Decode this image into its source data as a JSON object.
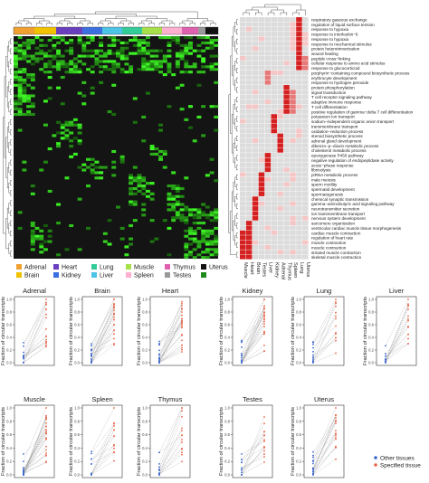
{
  "heatmap_left": {
    "tissues": [
      {
        "name": "Adrenal",
        "color": "#f0a030"
      },
      {
        "name": "Brain",
        "color": "#f2c200"
      },
      {
        "name": "Heart",
        "color": "#6a3fbf"
      },
      {
        "name": "Kidney",
        "color": "#3b6fe0"
      },
      {
        "name": "Liver",
        "color": "#4cc4e6"
      },
      {
        "name": "Lung",
        "color": "#33cc99"
      },
      {
        "name": "Muscle",
        "color": "#a8e04a"
      },
      {
        "name": "Spleen",
        "color": "#ffb0d0"
      },
      {
        "name": "Thymus",
        "color": "#e060b0"
      },
      {
        "name": "Testes",
        "color": "#999999"
      },
      {
        "name": "Uterus",
        "color": "#111111"
      }
    ],
    "legend_extra": {
      "color": "#1e8a1e"
    }
  },
  "heatmap_right": {
    "terms": [
      "respiratory gaseous exchange",
      "regulation of liquid surface tension",
      "response to hypoxia",
      "response to interleukin−6",
      "response to hypoxia",
      "response to mechanical stimulus",
      "protein heterotrimerization",
      "wound healing",
      "peptide cross−linking",
      "cellular response to amino acid stimulus",
      "response to glucocorticoid",
      "porphyrin−containing compound biosynthetic process",
      "erythrocyte development",
      "response to hydrogen peroxide",
      "protein phosphorylation",
      "signal transduction",
      "T cell receptor signaling pathway",
      "adaptive immune response",
      "T cell differentiation",
      "positive regulation of gamma−delta T cell differentiation",
      "potassium ion transport",
      "sodium−independent organic anion transport",
      "transmembrane transport",
      "oxidation−reduction process",
      "steroid biosynthetic process",
      "adrenal gland development",
      "dibenzo−p−dioxin metabolic process",
      "cholesterol metabolic process",
      "epoxygenase P450 pathway",
      "negative regulation of endopeptidase activity",
      "acute−phase response",
      "fibrinolysis",
      "piRNA metabolic process",
      "male meiosis",
      "sperm motility",
      "spermatid development",
      "spermatogenesis",
      "chemical synaptic transmission",
      "gamma−aminobutyric acid signaling pathway",
      "neurotransmitter secretion",
      "ion transmembrane transport",
      "nervous system development",
      "sarcomere organization",
      "ventricular cardiac muscle tissue morphogenesis",
      "cardiac muscle contraction",
      "regulation of heart rate",
      "muscle contraction",
      "muscle contraction",
      "striated muscle contraction",
      "skeletal muscle contraction"
    ],
    "columns": [
      "Muscle",
      "Heart",
      "Brain",
      "Testes",
      "Liver",
      "Kidney",
      "Adrenal",
      "Thymus",
      "Spleen",
      "Lung",
      "Uterus"
    ]
  },
  "scatter_panels": {
    "ylabel": "Fraction of circular transcripts",
    "panels": [
      {
        "title": "Adrenal"
      },
      {
        "title": "Brain"
      },
      {
        "title": "Heart"
      },
      {
        "title": "Kidney"
      },
      {
        "title": "Lung"
      },
      {
        "title": "Liver"
      },
      {
        "title": "Muscle"
      },
      {
        "title": "Spleen"
      },
      {
        "title": "Thymus"
      },
      {
        "title": "Testes"
      },
      {
        "title": "Uterus"
      }
    ],
    "yticks": [
      "0.0",
      "0.2",
      "0.4",
      "0.6",
      "0.8",
      "1.0"
    ],
    "legend": [
      {
        "label": "Other tissues",
        "color": "#3a66cc"
      },
      {
        "label": "Specified tissue",
        "color": "#e8654a"
      }
    ]
  },
  "chart_data": [
    {
      "type": "heatmap",
      "title": "",
      "column_groups": [
        "Adrenal",
        "Brain",
        "Heart",
        "Kidney",
        "Liver",
        "Lung",
        "Muscle",
        "Spleen",
        "Thymus",
        "Testes",
        "Uterus"
      ],
      "color_scale": [
        "black",
        "bright green"
      ]
    },
    {
      "type": "heatmap",
      "title": "",
      "rows": 50,
      "columns": [
        "Muscle",
        "Heart",
        "Brain",
        "Testes",
        "Liver",
        "Kidney",
        "Adrenal",
        "Thymus",
        "Spleen",
        "Lung",
        "Uterus"
      ],
      "color_scale": [
        "light grey",
        "dark red"
      ]
    },
    {
      "type": "scatter",
      "title": "",
      "panels": [
        "Adrenal",
        "Brain",
        "Heart",
        "Kidney",
        "Lung",
        "Liver",
        "Muscle",
        "Spleen",
        "Thymus",
        "Testes",
        "Uterus"
      ],
      "series": [
        {
          "name": "Other tissues"
        },
        {
          "name": "Specified tissue"
        }
      ],
      "ylim": [
        0,
        1
      ],
      "ylabel": "Fraction of circular transcripts"
    }
  ]
}
